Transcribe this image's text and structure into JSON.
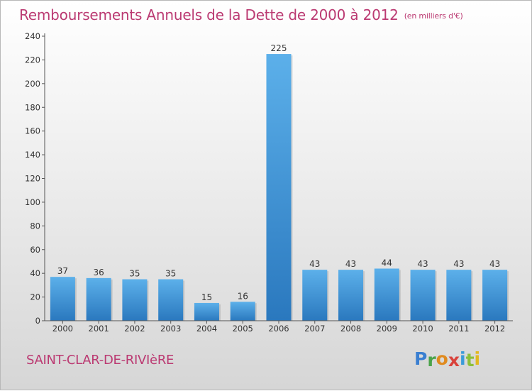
{
  "header": {
    "title": "Remboursements Annuels de la Dette de 2000 à 2012",
    "unit": "(en milliers d'€)"
  },
  "footer": {
    "commune": "SAINT-CLAR-DE-RIVIèRE",
    "logo_letters": [
      {
        "char": "P",
        "color": "#3a7fd1"
      },
      {
        "char": "r",
        "color": "#4aa34a"
      },
      {
        "char": "o",
        "color": "#e08a1e"
      },
      {
        "char": "x",
        "color": "#d9423b"
      },
      {
        "char": "i",
        "color": "#3a9bd8"
      },
      {
        "char": "t",
        "color": "#8cbf3a"
      },
      {
        "char": "i",
        "color": "#e2b81f"
      }
    ]
  },
  "chart_data": {
    "type": "bar",
    "title": "Remboursements Annuels de la Dette de 2000 à 2012",
    "categories": [
      "2000",
      "2001",
      "2002",
      "2003",
      "2004",
      "2005",
      "2006",
      "2007",
      "2008",
      "2009",
      "2010",
      "2011",
      "2012"
    ],
    "values": [
      37,
      36,
      35,
      35,
      15,
      16,
      225,
      43,
      43,
      44,
      43,
      43,
      43
    ],
    "ylim": [
      0,
      240
    ],
    "yticks": [
      0,
      20,
      40,
      60,
      80,
      100,
      120,
      140,
      160,
      180,
      200,
      220,
      240
    ],
    "grid": false,
    "bar_color": "#3f94d8",
    "bar_color_light": "#5cb0ea",
    "bar_color_dark": "#2a78be"
  }
}
